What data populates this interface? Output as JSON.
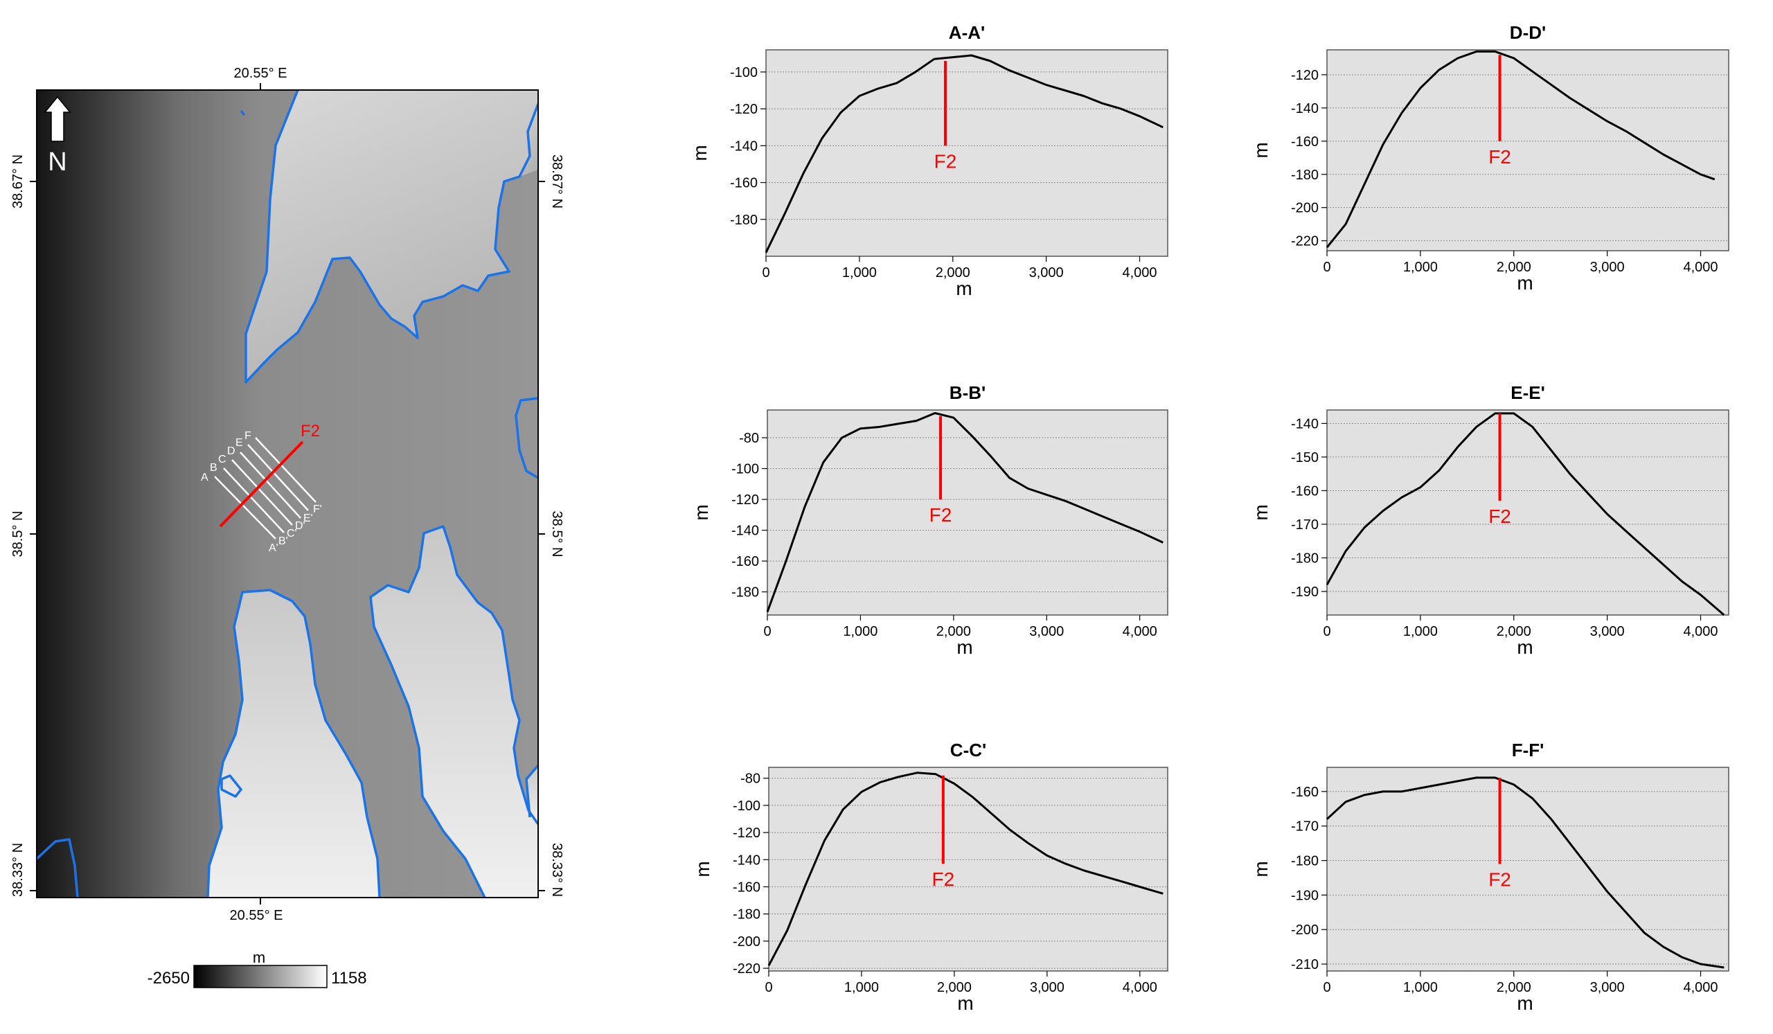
{
  "map": {
    "coord_top": "20.55° E",
    "coord_bottom": "20.55° E",
    "lat_left_top": "38.67° N",
    "lat_left_mid": "38.5° N",
    "lat_left_bottom": "38.33° N",
    "lat_right_top": "38.67° N",
    "lat_right_mid": "38.5° N",
    "lat_right_bottom": "38.33° N",
    "north_label": "N",
    "fault_label": "F2",
    "profile_start_labels": [
      "A",
      "B",
      "C",
      "D",
      "E",
      "F"
    ],
    "profile_end_labels": [
      "A'",
      "B'",
      "C'",
      "D'",
      "E'",
      "F'"
    ],
    "legend": {
      "unit": "m",
      "min_label": "-2650",
      "max_label": "1158"
    },
    "colors": {
      "coastline": "#1a73e8",
      "fault": "#ff0000",
      "profiles": "#ffffff"
    },
    "icons": [
      "north-arrow-icon"
    ]
  },
  "chart_data": [
    {
      "type": "line",
      "title": "A-A'",
      "xlabel": "m",
      "ylabel": "m",
      "xlim": [
        0,
        4300
      ],
      "ylim": [
        -200,
        -88
      ],
      "xticks": [
        0,
        1000,
        2000,
        3000,
        4000
      ],
      "xtick_labels": [
        "0",
        "1,000",
        "2,000",
        "3,000",
        "4,000"
      ],
      "yticks": [
        -180,
        -160,
        -140,
        -120,
        -100
      ],
      "ytick_labels": [
        "-180",
        "-160",
        "-140",
        "-120",
        "-100"
      ],
      "fault": {
        "label": "F2",
        "x": 1920,
        "y_top": -94,
        "y_bottom": -140
      },
      "x": [
        0,
        200,
        400,
        600,
        800,
        1000,
        1200,
        1400,
        1600,
        1800,
        2000,
        2200,
        2400,
        2600,
        2800,
        3000,
        3200,
        3400,
        3600,
        3800,
        4000,
        4250
      ],
      "y": [
        -198,
        -177,
        -155,
        -136,
        -122,
        -113,
        -109,
        -106,
        -100,
        -93,
        -92,
        -91,
        -94,
        -99,
        -103,
        -107,
        -110,
        -113,
        -117,
        -120,
        -124,
        -130
      ]
    },
    {
      "type": "line",
      "title": "D-D'",
      "xlabel": "m",
      "ylabel": "m",
      "xlim": [
        0,
        4300
      ],
      "ylim": [
        -226,
        -105
      ],
      "xticks": [
        0,
        1000,
        2000,
        3000,
        4000
      ],
      "xtick_labels": [
        "0",
        "1,000",
        "2,000",
        "3,000",
        "4,000"
      ],
      "yticks": [
        -220,
        -200,
        -180,
        -160,
        -140,
        -120
      ],
      "ytick_labels": [
        "-220",
        "-200",
        "-180",
        "-160",
        "-140",
        "-120"
      ],
      "fault": {
        "label": "F2",
        "x": 1850,
        "y_top": -108,
        "y_bottom": -160
      },
      "x": [
        0,
        200,
        400,
        600,
        800,
        1000,
        1200,
        1400,
        1600,
        1800,
        2000,
        2200,
        2400,
        2600,
        2800,
        3000,
        3200,
        3400,
        3600,
        3800,
        4000,
        4150
      ],
      "y": [
        -224,
        -210,
        -186,
        -162,
        -143,
        -128,
        -117,
        -110,
        -106,
        -106,
        -110,
        -118,
        -126,
        -134,
        -141,
        -148,
        -154,
        -161,
        -168,
        -174,
        -180,
        -183
      ]
    },
    {
      "type": "line",
      "title": "B-B'",
      "xlabel": "m",
      "ylabel": "m",
      "xlim": [
        0,
        4300
      ],
      "ylim": [
        -195,
        -62
      ],
      "xticks": [
        0,
        1000,
        2000,
        3000,
        4000
      ],
      "xtick_labels": [
        "0",
        "1,000",
        "2,000",
        "3,000",
        "4,000"
      ],
      "yticks": [
        -180,
        -160,
        -140,
        -120,
        -100,
        -80
      ],
      "ytick_labels": [
        "-180",
        "-160",
        "-140",
        "-120",
        "-100",
        "-80"
      ],
      "fault": {
        "label": "F2",
        "x": 1860,
        "y_top": -66,
        "y_bottom": -120
      },
      "x": [
        0,
        200,
        400,
        600,
        800,
        1000,
        1200,
        1400,
        1600,
        1800,
        2000,
        2200,
        2400,
        2600,
        2800,
        3000,
        3200,
        3400,
        3600,
        3800,
        4000,
        4250
      ],
      "y": [
        -193,
        -160,
        -125,
        -96,
        -80,
        -74,
        -73,
        -71,
        -69,
        -64,
        -67,
        -79,
        -92,
        -106,
        -113,
        -117,
        -121,
        -126,
        -131,
        -136,
        -141,
        -148
      ]
    },
    {
      "type": "line",
      "title": "E-E'",
      "xlabel": "m",
      "ylabel": "m",
      "xlim": [
        0,
        4300
      ],
      "ylim": [
        -197,
        -136
      ],
      "xticks": [
        0,
        1000,
        2000,
        3000,
        4000
      ],
      "xtick_labels": [
        "0",
        "1,000",
        "2,000",
        "3,000",
        "4,000"
      ],
      "yticks": [
        -190,
        -180,
        -170,
        -160,
        -150,
        -140
      ],
      "ytick_labels": [
        "-190",
        "-180",
        "-170",
        "-160",
        "-150",
        "-140"
      ],
      "fault": {
        "label": "F2",
        "x": 1850,
        "y_top": -137,
        "y_bottom": -163
      },
      "x": [
        0,
        200,
        400,
        600,
        800,
        1000,
        1200,
        1400,
        1600,
        1800,
        2000,
        2200,
        2400,
        2600,
        2800,
        3000,
        3200,
        3400,
        3600,
        3800,
        4000,
        4250
      ],
      "y": [
        -188,
        -178,
        -171,
        -166,
        -162,
        -159,
        -154,
        -147,
        -141,
        -137,
        -137,
        -141,
        -148,
        -155,
        -161,
        -167,
        -172,
        -177,
        -182,
        -187,
        -191,
        -197
      ]
    },
    {
      "type": "line",
      "title": "C-C'",
      "xlabel": "m",
      "ylabel": "m",
      "xlim": [
        0,
        4300
      ],
      "ylim": [
        -222,
        -72
      ],
      "xticks": [
        0,
        1000,
        2000,
        3000,
        4000
      ],
      "xtick_labels": [
        "0",
        "1,000",
        "2,000",
        "3,000",
        "4,000"
      ],
      "yticks": [
        -220,
        -200,
        -180,
        -160,
        -140,
        -120,
        -100,
        -80
      ],
      "ytick_labels": [
        "-220",
        "-200",
        "-180",
        "-160",
        "-140",
        "-120",
        "-100",
        "-80"
      ],
      "fault": {
        "label": "F2",
        "x": 1880,
        "y_top": -78,
        "y_bottom": -143
      },
      "x": [
        0,
        200,
        400,
        600,
        800,
        1000,
        1200,
        1400,
        1600,
        1800,
        2000,
        2200,
        2400,
        2600,
        2800,
        3000,
        3200,
        3400,
        3600,
        3800,
        4000,
        4250
      ],
      "y": [
        -218,
        -192,
        -158,
        -126,
        -103,
        -90,
        -83,
        -79,
        -76,
        -77,
        -84,
        -94,
        -106,
        -118,
        -128,
        -137,
        -143,
        -148,
        -152,
        -156,
        -160,
        -165
      ]
    },
    {
      "type": "line",
      "title": "F-F'",
      "xlabel": "m",
      "ylabel": "m",
      "xlim": [
        0,
        4300
      ],
      "ylim": [
        -212,
        -153
      ],
      "xticks": [
        0,
        1000,
        2000,
        3000,
        4000
      ],
      "xtick_labels": [
        "0",
        "1,000",
        "2,000",
        "3,000",
        "4,000"
      ],
      "yticks": [
        -210,
        -200,
        -190,
        -180,
        -170,
        -160
      ],
      "ytick_labels": [
        "-210",
        "-200",
        "-190",
        "-180",
        "-170",
        "-160"
      ],
      "fault": {
        "label": "F2",
        "x": 1850,
        "y_top": -156,
        "y_bottom": -181
      },
      "x": [
        0,
        200,
        400,
        600,
        800,
        1000,
        1200,
        1400,
        1600,
        1800,
        2000,
        2200,
        2400,
        2600,
        2800,
        3000,
        3200,
        3400,
        3600,
        3800,
        4000,
        4250
      ],
      "y": [
        -168,
        -163,
        -161,
        -160,
        -160,
        -159,
        -158,
        -157,
        -156,
        -156,
        -158,
        -162,
        -168,
        -175,
        -182,
        -189,
        -195,
        -201,
        -205,
        -208,
        -210,
        -211
      ]
    }
  ]
}
